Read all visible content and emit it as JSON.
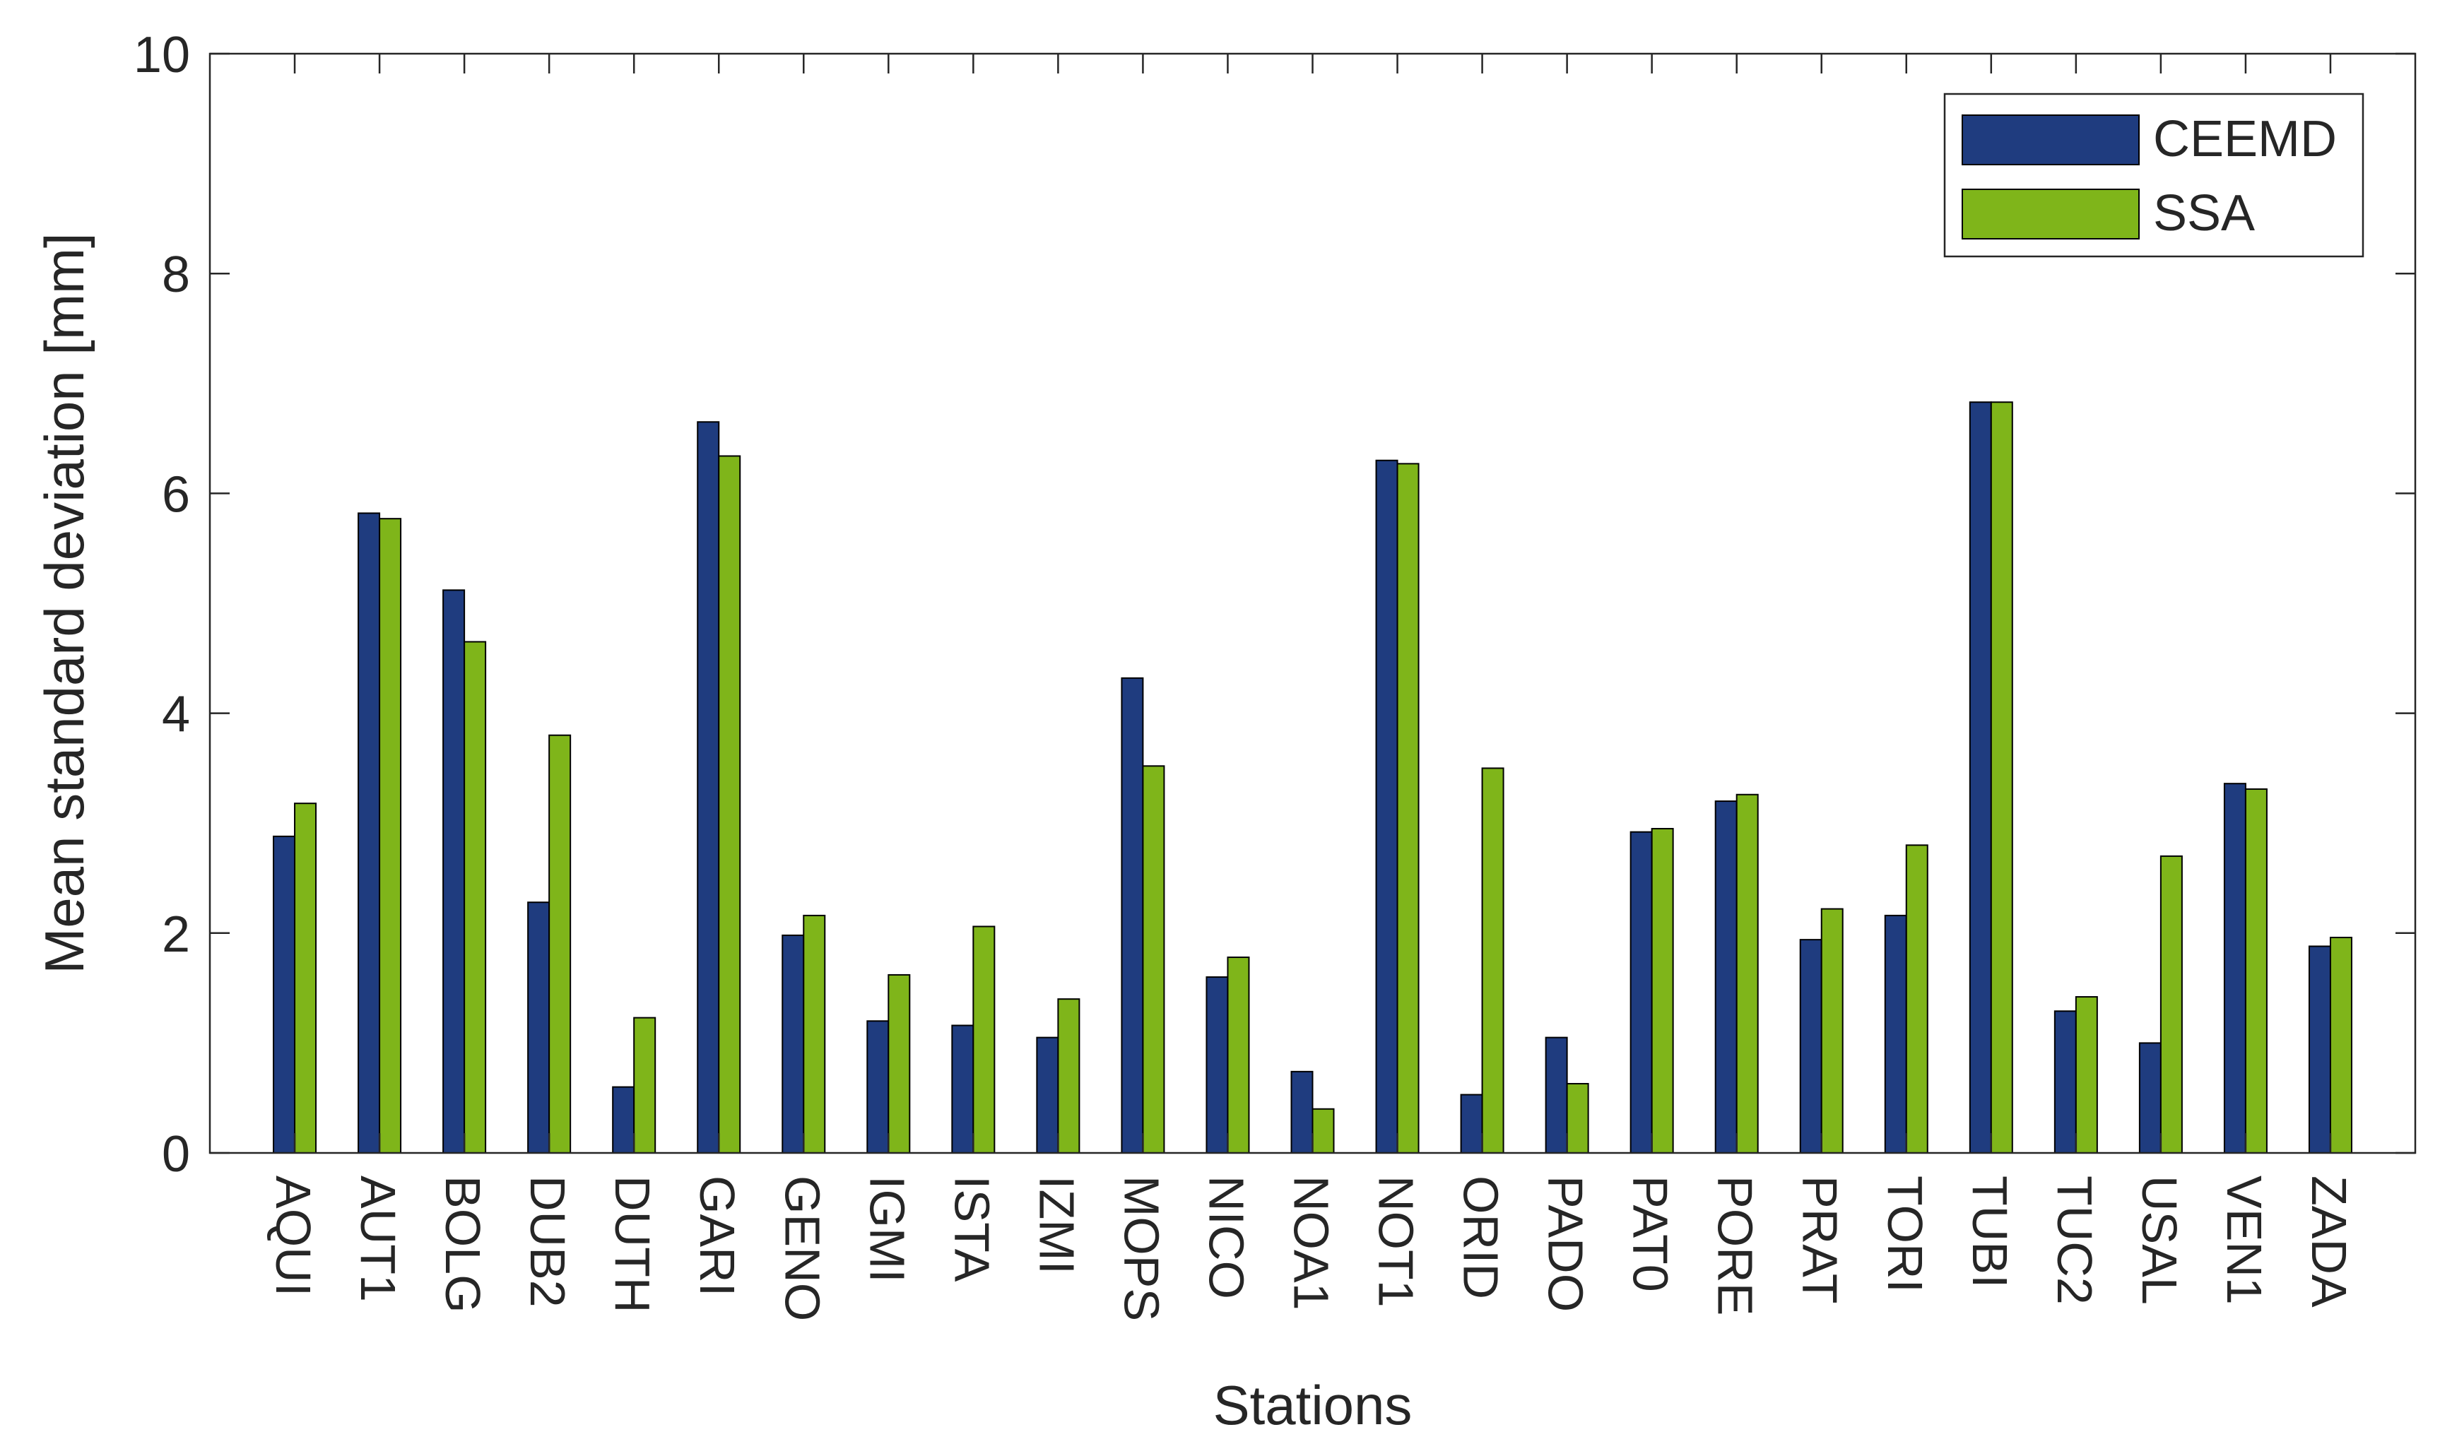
{
  "chart_data": {
    "type": "bar",
    "xlabel": "Stations",
    "ylabel": "Mean standard deviation [mm]",
    "ylim": [
      0,
      10
    ],
    "yticks": [
      0,
      2,
      4,
      6,
      8,
      10
    ],
    "grid": false,
    "legend_position": "top-right",
    "categories": [
      "AQUI",
      "AUT1",
      "BOLG",
      "DUB2",
      "DUTH",
      "GARI",
      "GENO",
      "IGMI",
      "ISTA",
      "IZMI",
      "MOPS",
      "NICO",
      "NOA1",
      "NOT1",
      "ORID",
      "PADO",
      "PAT0",
      "PORE",
      "PRAT",
      "TORI",
      "TUBI",
      "TUC2",
      "USAL",
      "VEN1",
      "ZADA"
    ],
    "series": [
      {
        "name": "CEEMD",
        "color": "#1f3c7f",
        "values": [
          2.88,
          5.82,
          5.12,
          2.28,
          0.6,
          6.65,
          1.98,
          1.2,
          1.16,
          1.05,
          4.32,
          1.6,
          0.74,
          6.3,
          0.53,
          1.05,
          2.92,
          3.2,
          1.94,
          2.16,
          6.83,
          1.29,
          1.0,
          3.36,
          1.88
        ]
      },
      {
        "name": "SSA",
        "color": "#7fb51a",
        "values": [
          3.18,
          5.77,
          4.65,
          3.8,
          1.23,
          6.34,
          2.16,
          1.62,
          2.06,
          1.4,
          3.52,
          1.78,
          0.4,
          6.27,
          3.5,
          0.63,
          2.95,
          3.26,
          2.22,
          2.8,
          6.83,
          1.42,
          2.7,
          3.31,
          1.96
        ]
      }
    ]
  }
}
